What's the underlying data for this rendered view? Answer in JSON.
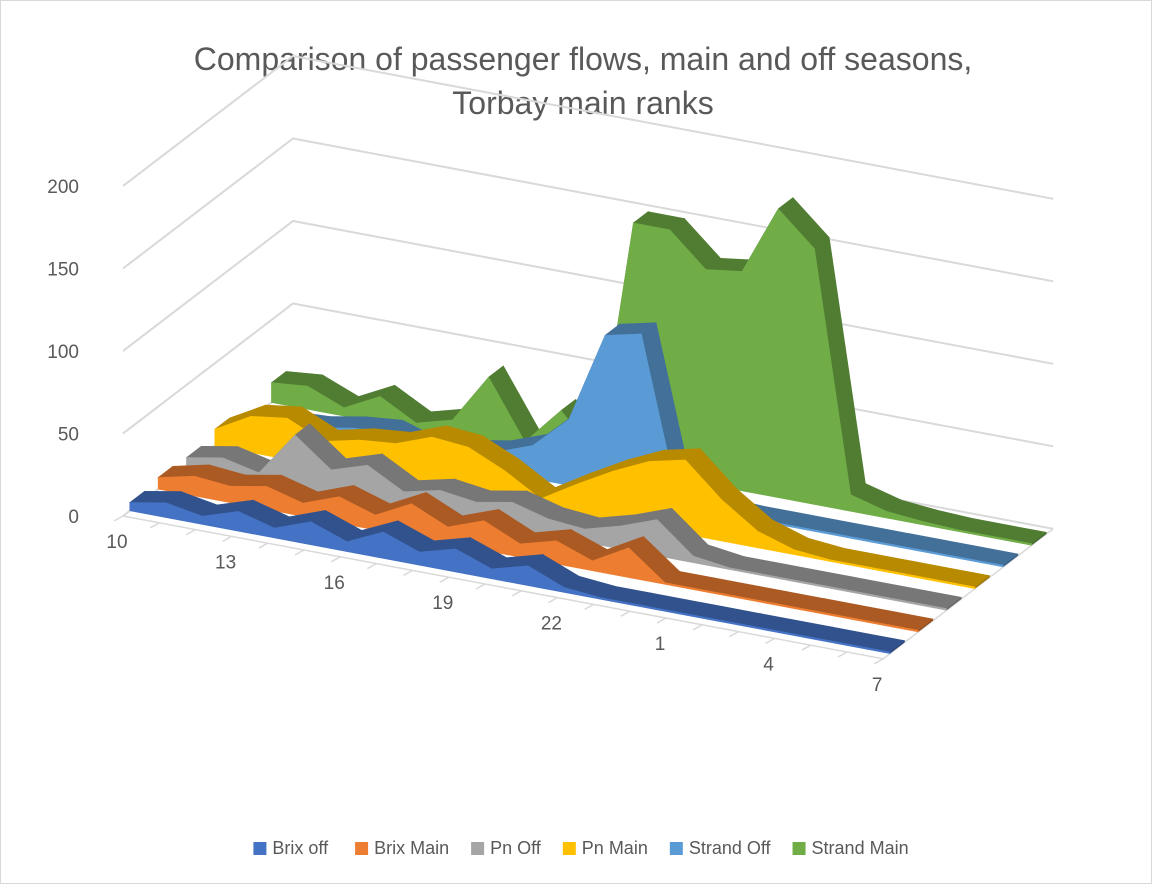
{
  "chart_data": {
    "type": "area",
    "title": "Comparison of passenger flows, main and off seasons,",
    "subtitle": "Torbay main ranks",
    "xlabel": "",
    "ylabel": "",
    "categories": [
      "10",
      "11",
      "12",
      "13",
      "14",
      "15",
      "16",
      "17",
      "18",
      "19",
      "20",
      "21",
      "22",
      "23",
      "24",
      "1",
      "2",
      "3",
      "4",
      "5",
      "6",
      "7"
    ],
    "x_tick_labels": [
      "10",
      "13",
      "16",
      "19",
      "22",
      "1",
      "4",
      "7"
    ],
    "y_tick_labels": [
      "0",
      "50",
      "100",
      "150",
      "200"
    ],
    "ylim": [
      0,
      200
    ],
    "grid": true,
    "legend_position": "bottom",
    "series": [
      {
        "name": "Brix  off",
        "color": "#4472c4",
        "values": [
          5,
          9,
          5,
          12,
          6,
          14,
          6,
          16,
          8,
          14,
          6,
          12,
          3,
          1,
          1,
          1,
          1,
          1,
          1,
          1,
          1,
          1
        ]
      },
      {
        "name": "Brix Main",
        "color": "#ed7d31",
        "values": [
          7,
          12,
          10,
          14,
          8,
          16,
          9,
          20,
          10,
          18,
          8,
          14,
          6,
          18,
          1,
          1,
          1,
          1,
          1,
          1,
          1,
          1
        ]
      },
      {
        "name": "Pn Off",
        "color": "#a5a5a5",
        "values": [
          6,
          10,
          5,
          32,
          15,
          22,
          10,
          15,
          12,
          16,
          10,
          8,
          14,
          22,
          4,
          1,
          1,
          1,
          1,
          1,
          1,
          1
        ]
      },
      {
        "name": "Pn Main",
        "color": "#ffc000",
        "values": [
          10,
          22,
          25,
          15,
          20,
          22,
          30,
          28,
          18,
          5,
          18,
          30,
          40,
          45,
          25,
          10,
          3,
          1,
          1,
          1,
          1,
          1
        ]
      },
      {
        "name": "Strand Off",
        "color": "#5b9bd5",
        "values": [
          3,
          5,
          6,
          10,
          12,
          5,
          8,
          12,
          20,
          40,
          95,
          100,
          5,
          2,
          1,
          1,
          1,
          1,
          1,
          1,
          1,
          1
        ]
      },
      {
        "name": "Strand Main",
        "color": "#70ad47",
        "values": [
          12,
          14,
          5,
          16,
          4,
          10,
          40,
          5,
          28,
          5,
          150,
          150,
          130,
          133,
          175,
          155,
          10,
          4,
          2,
          1,
          1,
          1
        ]
      }
    ]
  }
}
